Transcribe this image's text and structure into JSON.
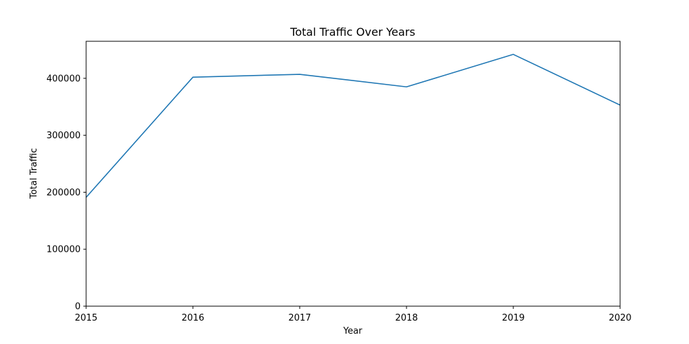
{
  "chart_data": {
    "type": "line",
    "title": "Total Traffic Over Years",
    "xlabel": "Year",
    "ylabel": "Total Traffic",
    "x": [
      2015,
      2016,
      2017,
      2018,
      2019,
      2020
    ],
    "series": [
      {
        "name": "",
        "color": "#1f77b4",
        "values": [
          191000,
          402000,
          407000,
          385000,
          442000,
          353000
        ]
      }
    ],
    "xlim": [
      2015,
      2020
    ],
    "ylim": [
      0,
      465000
    ],
    "x_ticks": [
      2015,
      2016,
      2017,
      2018,
      2019,
      2020
    ],
    "x_tick_labels": [
      "2015",
      "2016",
      "2017",
      "2018",
      "2019",
      "2020"
    ],
    "y_ticks": [
      0,
      100000,
      200000,
      300000,
      400000
    ],
    "y_tick_labels": [
      "0",
      "100000",
      "200000",
      "300000",
      "400000"
    ],
    "grid": false,
    "legend": "none"
  }
}
